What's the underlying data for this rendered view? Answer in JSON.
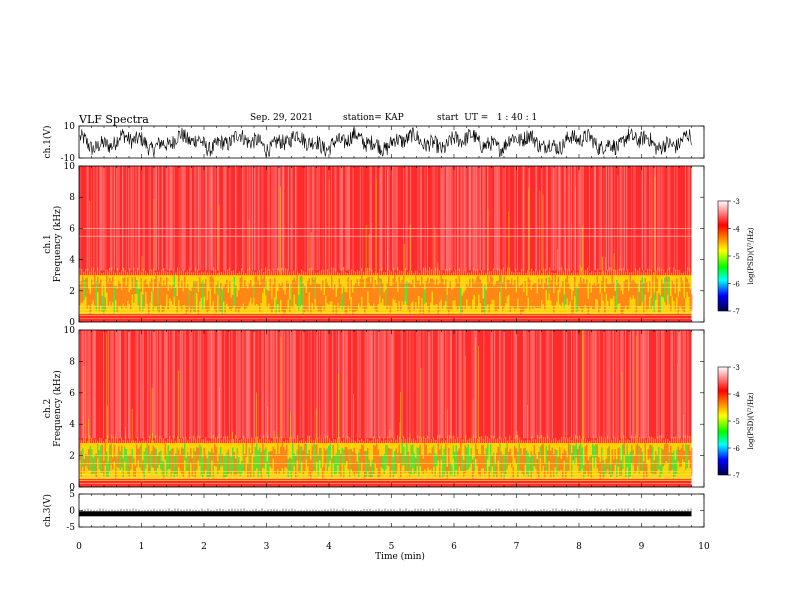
{
  "header": {
    "title": "VLF Spectra",
    "date": "Sep. 29, 2021",
    "station": "station= KAP",
    "start_ut": "start  UT =   1 : 40 : 1"
  },
  "colors": {
    "spec_background": "#ff2a2a",
    "spec_light": "#ff9a9a",
    "band_yellow": "#ffe600",
    "band_green": "#3de03d",
    "waveform": "#000000"
  },
  "colorbar": {
    "label": "log(PSD)(V²/Hz)",
    "ticks": [
      "-3",
      "-4",
      "-5",
      "-6",
      "-7"
    ],
    "stops": [
      "#ffffff",
      "#ff0000",
      "#ffff00",
      "#00ff00",
      "#00ffff",
      "#0000ff",
      "#000040"
    ]
  },
  "chart_data": [
    {
      "type": "line",
      "name": "ch1-waveform",
      "ylabel": "ch.1(V)",
      "ylim": [
        -10,
        10
      ],
      "yticks": [
        "10",
        "-10"
      ],
      "xlim": [
        0,
        10
      ],
      "description_values": "noisy waveform spanning about -8 to +8 V, ending near 9.8 min"
    },
    {
      "type": "heatmap",
      "name": "ch1-spectrogram",
      "ylabel": "ch.1\nFrequency (kHz)",
      "ylim": [
        0,
        10
      ],
      "yticks": [
        "0",
        "2",
        "4",
        "6",
        "8",
        "10"
      ],
      "xlim": [
        0,
        10
      ],
      "data_end_min": 9.8,
      "background_log_psd": -3.5,
      "band": {
        "from_khz": 0.5,
        "to_khz": 3.0,
        "log_psd": -4.3
      },
      "horizontal_lines_khz": [
        0.2,
        0.4,
        0.6,
        0.8,
        1.0,
        2.2,
        2.5,
        5.5,
        6.0
      ]
    },
    {
      "type": "heatmap",
      "name": "ch2-spectrogram",
      "ylabel": "ch.2\nFrequency (kHz)",
      "ylim": [
        0,
        10
      ],
      "yticks": [
        "0",
        "2",
        "4",
        "6",
        "8",
        "10"
      ],
      "xlim": [
        0,
        10
      ],
      "data_end_min": 9.8,
      "background_log_psd": -3.5,
      "band": {
        "from_khz": 0.5,
        "to_khz": 2.8,
        "log_psd": -4.8
      },
      "horizontal_lines_khz": [
        0.2,
        0.4,
        0.6,
        0.8,
        1.0,
        1.5,
        2.0
      ]
    },
    {
      "type": "line",
      "name": "ch3-waveform",
      "ylabel": "ch.3(V)",
      "ylim": [
        -5,
        5
      ],
      "yticks": [
        "5",
        "0",
        "-5"
      ],
      "xlim": [
        0,
        10
      ],
      "level_v": -1.0,
      "description_values": "near-constant thick trace around -1 V"
    }
  ],
  "xaxis": {
    "label": "Time  (min)",
    "ticks": [
      "0",
      "1",
      "2",
      "3",
      "4",
      "5",
      "6",
      "7",
      "8",
      "9",
      "10"
    ]
  }
}
